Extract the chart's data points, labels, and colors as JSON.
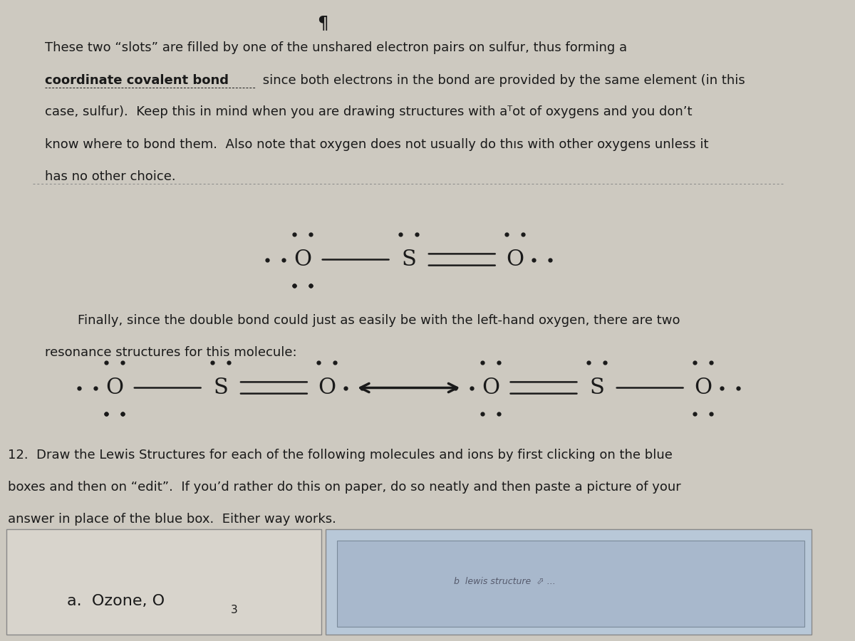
{
  "bg_color": "#cdc9c0",
  "text_color": "#1a1a1a",
  "font_size_body": 13,
  "font_size_molecule": 22,
  "box1_color": "#d8d4cc",
  "box2_color": "#b8c8d8",
  "box2_inner_color": "#a8b8cc",
  "dot_color": "#1a1a1a",
  "line1": "These two “slots” are filled by one of the unshared electron pairs on sulfur, thus forming a",
  "line2a": "coordinate covalent bond",
  "line2b": " since both electrons in the bond are provided by the same element (in this",
  "line3": "case, sulfur).  Keep this in mind when you are drawing structures with aᵀot of oxygens and you don’t",
  "line4": "know where to bond them.  Also note that oxygen does not usually do thıs with other oxygens unless it",
  "line5": "has no other choice.",
  "para2_line1": "Finally, since the double bond could just as easily be with the left-hand oxygen, there are two",
  "para2_line2": "resonance structures for this molecule:",
  "para3_line1": "12.  Draw the Lewis Structures for each of the following molecules and ions by first clicking on the blue",
  "para3_line2": "boxes and then on “edit”.  If you’d rather do this on paper, do so neatly and then paste a picture of your",
  "para3_line3": "answer in place of the blue box.  Either way works.",
  "label_a_main": "a.  Ozone, O",
  "label_a_sub": "3",
  "top_symbol": "¶",
  "right_box_text": "b  lewis structure  ⬀ ..."
}
